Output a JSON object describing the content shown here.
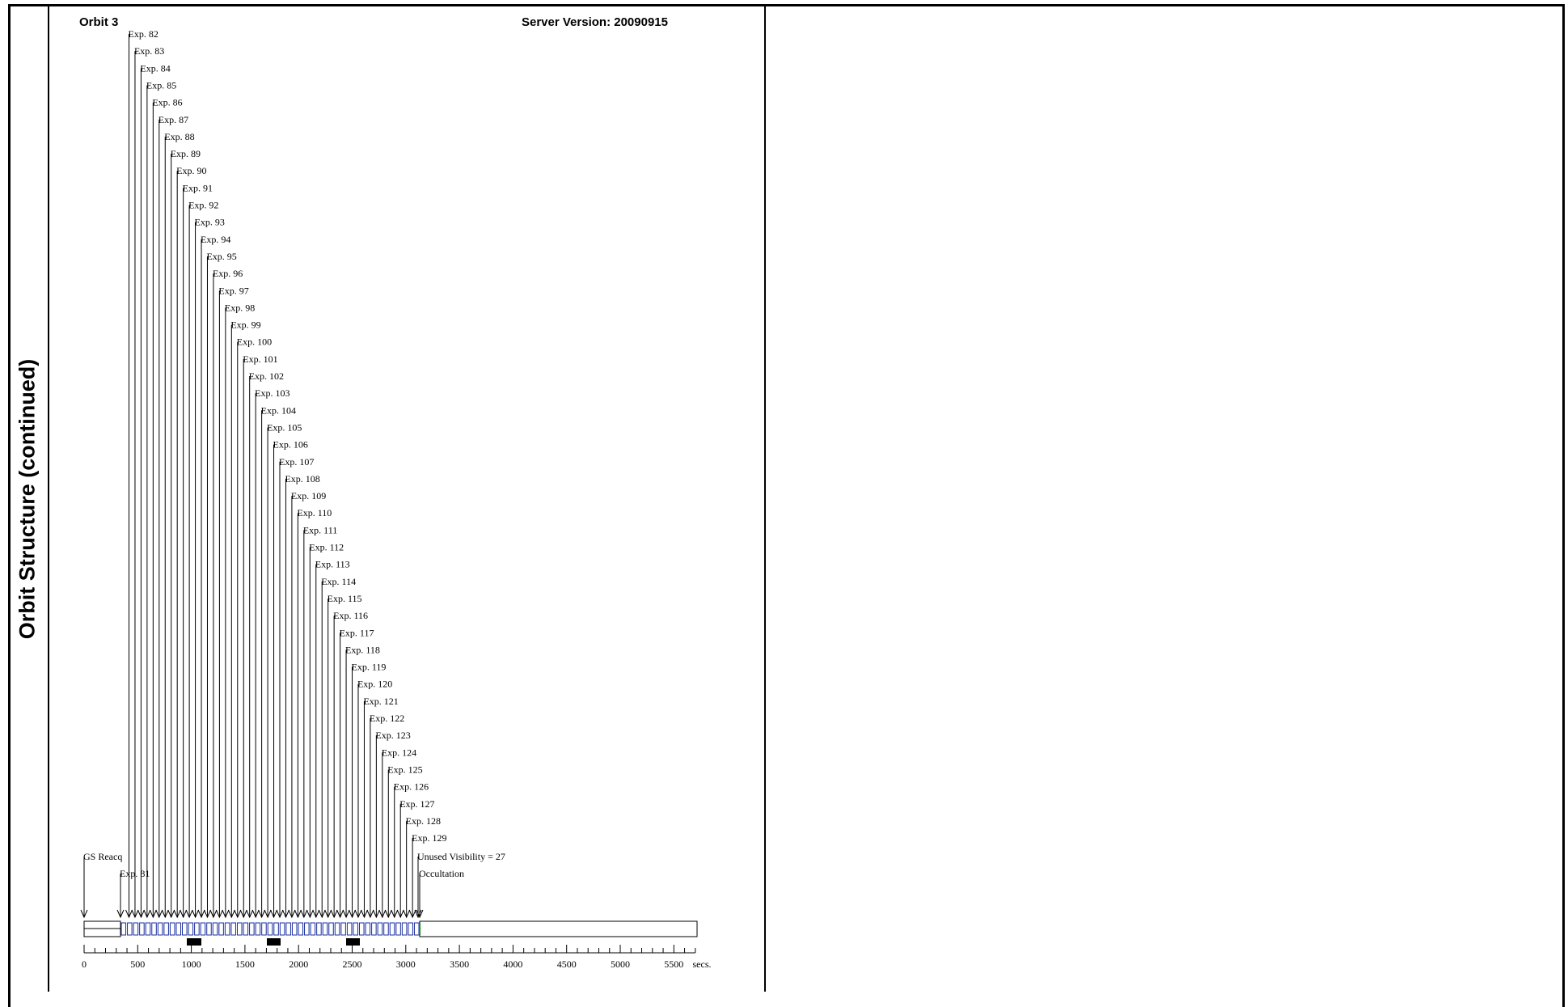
{
  "side_title": "Orbit Structure (continued)",
  "orbit_title": "Orbit 3",
  "server_version": "Server Version: 20090915",
  "start_label": "GS Reacq",
  "exposures": [
    "Exp. 81",
    "Exp. 82",
    "Exp. 83",
    "Exp. 84",
    "Exp. 85",
    "Exp. 86",
    "Exp. 87",
    "Exp. 88",
    "Exp. 89",
    "Exp. 90",
    "Exp. 91",
    "Exp. 92",
    "Exp. 93",
    "Exp. 94",
    "Exp. 95",
    "Exp. 96",
    "Exp. 97",
    "Exp. 98",
    "Exp. 99",
    "Exp. 100",
    "Exp. 101",
    "Exp. 102",
    "Exp. 103",
    "Exp. 104",
    "Exp. 105",
    "Exp. 106",
    "Exp. 107",
    "Exp. 108",
    "Exp. 109",
    "Exp. 110",
    "Exp. 111",
    "Exp. 112",
    "Exp. 113",
    "Exp. 114",
    "Exp. 115",
    "Exp. 116",
    "Exp. 117",
    "Exp. 118",
    "Exp. 119",
    "Exp. 120",
    "Exp. 121",
    "Exp. 122",
    "Exp. 123",
    "Exp. 124",
    "Exp. 125",
    "Exp. 126",
    "Exp. 127",
    "Exp. 128",
    "Exp. 129"
  ],
  "unused_label": "Unused Visibility = 27",
  "occultation_label": "Occultation",
  "axis": {
    "ticks": [
      "0",
      "500",
      "1000",
      "1500",
      "2000",
      "2500",
      "3000",
      "3500",
      "4000",
      "4500",
      "5000",
      "5500"
    ],
    "unit": "secs."
  }
}
